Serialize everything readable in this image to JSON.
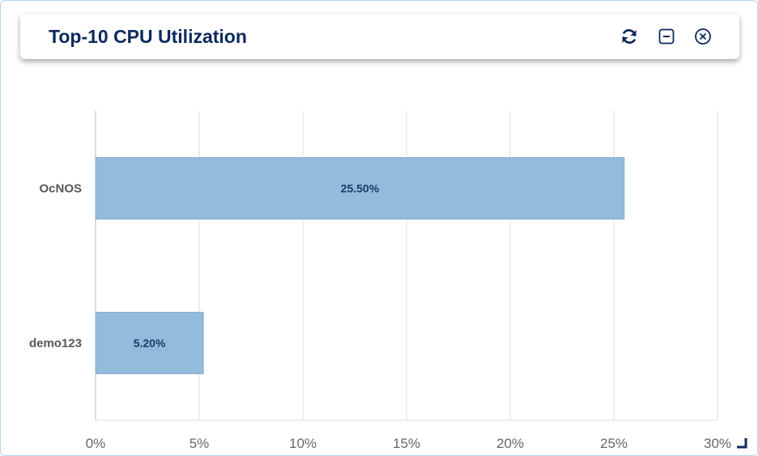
{
  "widget": {
    "title": "Top-10 CPU Utilization",
    "icons": {
      "refresh": "refresh-icon",
      "minimize": "minimize-icon",
      "close": "close-icon",
      "resize": "resize-handle-icon"
    }
  },
  "chart_data": {
    "type": "bar",
    "orientation": "horizontal",
    "categories": [
      "OcNOS",
      "demo123"
    ],
    "values": [
      25.5,
      5.2
    ],
    "data_labels": [
      "25.50%",
      "5.20%"
    ],
    "xlim": [
      0,
      30
    ],
    "x_ticks": [
      0,
      5,
      10,
      15,
      20,
      25,
      30
    ],
    "x_tick_labels": [
      "0%",
      "5%",
      "10%",
      "15%",
      "20%",
      "25%",
      "30%"
    ],
    "grid": true,
    "legend": "none",
    "bar_color": "#93bbdb",
    "title": "Top-10 CPU Utilization"
  }
}
